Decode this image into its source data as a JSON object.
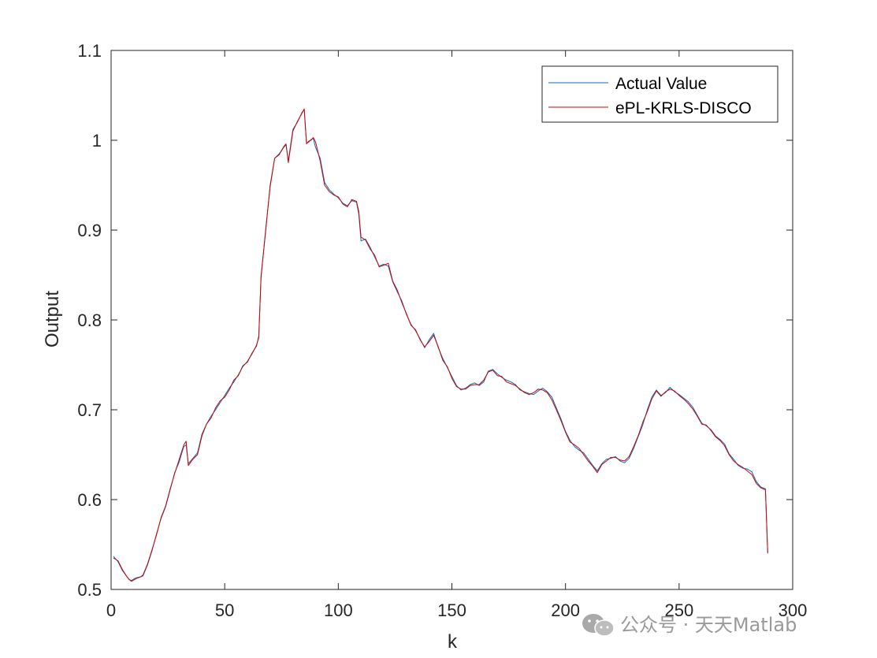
{
  "chart_data": {
    "type": "line",
    "title": "",
    "xlabel": "k",
    "ylabel": "Output",
    "xlim": [
      0,
      300
    ],
    "ylim": [
      0.5,
      1.1
    ],
    "xticks": [
      0,
      50,
      100,
      150,
      200,
      250,
      300
    ],
    "yticks": [
      0.5,
      0.6,
      0.7,
      0.8,
      0.9,
      1,
      1.1
    ],
    "xtick_labels": [
      "0",
      "50",
      "100",
      "150",
      "200",
      "250",
      "300"
    ],
    "ytick_labels": [
      "0.5",
      "0.6",
      "0.7",
      "0.8",
      "0.9",
      "1",
      "1.1"
    ],
    "grid": false,
    "legend_position": "top-right",
    "series": [
      {
        "name": "Actual Value",
        "color": "#0072BD",
        "x": [
          1,
          3,
          5,
          7,
          8,
          9,
          11,
          13,
          14,
          16,
          18,
          20,
          22,
          24,
          26,
          28,
          30,
          31,
          32,
          33,
          34,
          36,
          38,
          40,
          42,
          44,
          46,
          48,
          50,
          52,
          54,
          56,
          58,
          60,
          62,
          64,
          65,
          66,
          68,
          70,
          72,
          74,
          76,
          77,
          78,
          80,
          82,
          84,
          85,
          86,
          87,
          88,
          89,
          90,
          92,
          94,
          96,
          98,
          100,
          102,
          104,
          106,
          108,
          109,
          110,
          112,
          114,
          116,
          118,
          120,
          122,
          124,
          126,
          128,
          130,
          132,
          134,
          136,
          138,
          140,
          142,
          144,
          146,
          148,
          150,
          152,
          154,
          156,
          158,
          160,
          162,
          164,
          166,
          168,
          170,
          172,
          174,
          176,
          178,
          180,
          182,
          184,
          186,
          188,
          190,
          192,
          194,
          196,
          198,
          200,
          202,
          204,
          206,
          208,
          210,
          212,
          214,
          216,
          218,
          220,
          222,
          224,
          226,
          228,
          230,
          232,
          234,
          236,
          238,
          240,
          242,
          244,
          246,
          248,
          250,
          252,
          254,
          256,
          258,
          260,
          262,
          264,
          266,
          268,
          270,
          272,
          274,
          276,
          278,
          280,
          282,
          284,
          286,
          288,
          289
        ],
        "y": [
          0.537,
          0.531,
          0.521,
          0.514,
          0.511,
          0.51,
          0.513,
          0.514,
          0.515,
          0.527,
          0.543,
          0.562,
          0.579,
          0.592,
          0.611,
          0.63,
          0.642,
          0.651,
          0.659,
          0.661,
          0.64,
          0.646,
          0.652,
          0.673,
          0.684,
          0.693,
          0.7,
          0.708,
          0.716,
          0.724,
          0.731,
          0.739,
          0.748,
          0.754,
          0.762,
          0.772,
          0.78,
          0.849,
          0.898,
          0.95,
          0.98,
          0.985,
          0.992,
          0.995,
          0.977,
          1.012,
          1.02,
          1.031,
          1.034,
          0.997,
          0.998,
          1.001,
          1.002,
          0.992,
          0.98,
          0.953,
          0.945,
          0.94,
          0.936,
          0.93,
          0.927,
          0.933,
          0.931,
          0.918,
          0.888,
          0.89,
          0.881,
          0.87,
          0.86,
          0.862,
          0.86,
          0.842,
          0.831,
          0.821,
          0.806,
          0.795,
          0.788,
          0.779,
          0.769,
          0.778,
          0.785,
          0.769,
          0.757,
          0.747,
          0.737,
          0.727,
          0.722,
          0.724,
          0.728,
          0.73,
          0.727,
          0.731,
          0.743,
          0.745,
          0.74,
          0.736,
          0.733,
          0.731,
          0.728,
          0.722,
          0.72,
          0.718,
          0.717,
          0.721,
          0.724,
          0.72,
          0.714,
          0.702,
          0.69,
          0.676,
          0.666,
          0.659,
          0.655,
          0.652,
          0.645,
          0.638,
          0.632,
          0.64,
          0.645,
          0.646,
          0.648,
          0.643,
          0.641,
          0.646,
          0.657,
          0.67,
          0.683,
          0.7,
          0.714,
          0.722,
          0.716,
          0.719,
          0.725,
          0.72,
          0.717,
          0.713,
          0.709,
          0.703,
          0.694,
          0.685,
          0.682,
          0.678,
          0.671,
          0.667,
          0.662,
          0.651,
          0.645,
          0.638,
          0.635,
          0.634,
          0.631,
          0.62,
          0.614,
          0.612,
          0.54
        ]
      },
      {
        "name": "ePL-KRLS-DISCO",
        "color": "#D40000",
        "x": [
          1,
          3,
          5,
          7,
          8,
          9,
          11,
          13,
          14,
          16,
          18,
          20,
          22,
          24,
          26,
          28,
          30,
          31,
          32,
          33,
          34,
          36,
          38,
          40,
          42,
          44,
          46,
          48,
          50,
          52,
          54,
          56,
          58,
          60,
          62,
          64,
          65,
          66,
          68,
          70,
          72,
          74,
          76,
          77,
          78,
          80,
          82,
          84,
          85,
          86,
          87,
          88,
          89,
          90,
          92,
          94,
          96,
          98,
          100,
          102,
          104,
          106,
          108,
          109,
          110,
          112,
          114,
          116,
          118,
          120,
          122,
          124,
          126,
          128,
          130,
          132,
          134,
          136,
          138,
          140,
          142,
          144,
          146,
          148,
          150,
          152,
          154,
          156,
          158,
          160,
          162,
          164,
          166,
          168,
          170,
          172,
          174,
          176,
          178,
          180,
          182,
          184,
          186,
          188,
          190,
          192,
          194,
          196,
          198,
          200,
          202,
          204,
          206,
          208,
          210,
          212,
          214,
          216,
          218,
          220,
          222,
          224,
          226,
          228,
          230,
          232,
          234,
          236,
          238,
          240,
          242,
          244,
          246,
          248,
          250,
          252,
          254,
          256,
          258,
          260,
          262,
          264,
          266,
          268,
          270,
          272,
          274,
          276,
          278,
          280,
          282,
          284,
          286,
          288,
          289
        ],
        "y": [
          0.535,
          0.532,
          0.522,
          0.514,
          0.511,
          0.509,
          0.512,
          0.514,
          0.516,
          0.528,
          0.544,
          0.561,
          0.58,
          0.593,
          0.612,
          0.629,
          0.645,
          0.653,
          0.661,
          0.665,
          0.638,
          0.645,
          0.65,
          0.671,
          0.684,
          0.691,
          0.702,
          0.71,
          0.714,
          0.722,
          0.733,
          0.738,
          0.749,
          0.753,
          0.763,
          0.771,
          0.782,
          0.847,
          0.9,
          0.948,
          0.98,
          0.984,
          0.993,
          0.996,
          0.975,
          1.01,
          1.021,
          1.03,
          1.035,
          0.996,
          0.999,
          1.0,
          1.003,
          0.998,
          0.977,
          0.95,
          0.943,
          0.939,
          0.937,
          0.929,
          0.926,
          0.934,
          0.932,
          0.921,
          0.892,
          0.889,
          0.879,
          0.872,
          0.859,
          0.861,
          0.863,
          0.843,
          0.833,
          0.819,
          0.807,
          0.794,
          0.789,
          0.778,
          0.77,
          0.776,
          0.783,
          0.77,
          0.755,
          0.748,
          0.735,
          0.726,
          0.723,
          0.723,
          0.727,
          0.728,
          0.728,
          0.733,
          0.742,
          0.744,
          0.738,
          0.737,
          0.731,
          0.729,
          0.727,
          0.723,
          0.719,
          0.717,
          0.719,
          0.723,
          0.722,
          0.719,
          0.711,
          0.7,
          0.688,
          0.675,
          0.664,
          0.661,
          0.657,
          0.65,
          0.643,
          0.637,
          0.63,
          0.639,
          0.643,
          0.647,
          0.647,
          0.644,
          0.643,
          0.648,
          0.659,
          0.671,
          0.686,
          0.698,
          0.712,
          0.721,
          0.715,
          0.72,
          0.723,
          0.721,
          0.716,
          0.712,
          0.707,
          0.701,
          0.693,
          0.684,
          0.683,
          0.677,
          0.67,
          0.666,
          0.66,
          0.65,
          0.643,
          0.639,
          0.636,
          0.632,
          0.628,
          0.618,
          0.613,
          0.611,
          0.541
        ]
      }
    ]
  },
  "watermark": {
    "text": "公众号 · 天天Matlab",
    "icon": "wechat-icon"
  }
}
